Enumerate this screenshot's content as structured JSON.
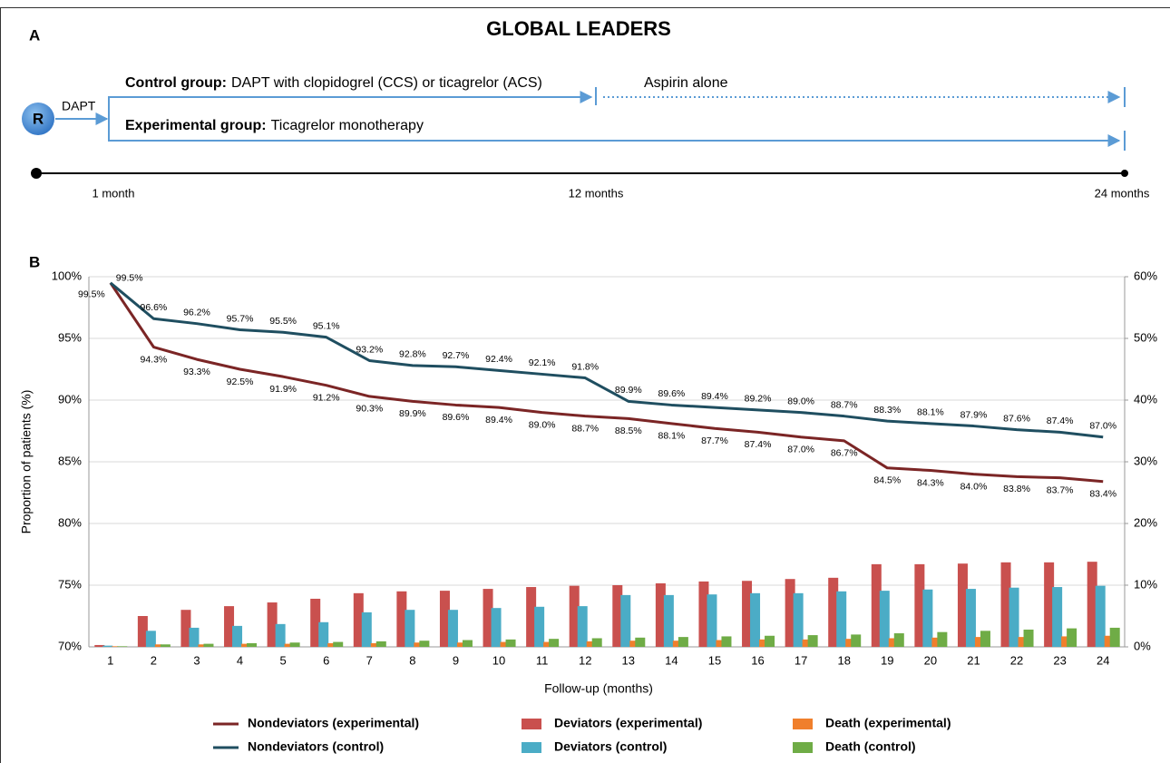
{
  "title": "GLOBAL LEADERS",
  "panel_a": {
    "label": "A",
    "randomization": "R",
    "dapt": "DAPT",
    "control_group": "Control group:",
    "control_regimen": "DAPT with clopidogrel (CCS) or ticagrelor (ACS)",
    "aspirin": "Aspirin alone",
    "experimental_group": "Experimental group:",
    "experimental_regimen": "Ticagrelor monotherapy",
    "timeline": [
      "1 month",
      "12 months",
      "24 months"
    ]
  },
  "panel_b_label": "B",
  "chart_data": {
    "type": "combo",
    "y_label": "Proportion of patients (%)",
    "x_label": "Follow-up (months)",
    "categories": [
      1,
      2,
      3,
      4,
      5,
      6,
      7,
      8,
      9,
      10,
      11,
      12,
      13,
      14,
      15,
      16,
      17,
      18,
      19,
      20,
      21,
      22,
      23,
      24
    ],
    "ylim": [
      70,
      100
    ],
    "yticks": [
      {
        "value": 70,
        "label": "70%"
      },
      {
        "value": 75,
        "label": "75%"
      },
      {
        "value": 80,
        "label": "80%"
      },
      {
        "value": 85,
        "label": "85%"
      },
      {
        "value": 90,
        "label": "90%"
      },
      {
        "value": 95,
        "label": "95%"
      },
      {
        "value": 100,
        "label": "100%"
      }
    ],
    "y2lim": [
      0,
      60
    ],
    "y2ticks": [
      {
        "value": 0,
        "label": "0%"
      },
      {
        "value": 10,
        "label": "10%"
      },
      {
        "value": 20,
        "label": "20%"
      },
      {
        "value": 30,
        "label": "30%"
      },
      {
        "value": 40,
        "label": "40%"
      },
      {
        "value": 50,
        "label": "50%"
      },
      {
        "value": 60,
        "label": "60%"
      }
    ],
    "grid": true,
    "series": [
      {
        "name": "Nondeviators (experimental)",
        "type": "line",
        "color": "#7b2525",
        "values": [
          99.5,
          94.3,
          93.3,
          92.5,
          91.9,
          91.2,
          90.3,
          89.9,
          89.6,
          89.4,
          89.0,
          88.7,
          88.5,
          88.1,
          87.7,
          87.4,
          87.0,
          86.7,
          84.5,
          84.3,
          84.0,
          83.8,
          83.7,
          83.4
        ],
        "value_labels": [
          "99.5%",
          "94.3%",
          "93.3%",
          "92.5%",
          "91.9%",
          "91.2%",
          "90.3%",
          "89.9%",
          "89.6%",
          "89.4%",
          "89.0%",
          "88.7%",
          "88.5%",
          "88.1%",
          "87.7%",
          "87.4%",
          "87.0%",
          "86.7%",
          "84.5%",
          "84.3%",
          "84.0%",
          "83.8%",
          "83.7%",
          "83.4%"
        ]
      },
      {
        "name": "Nondeviators (control)",
        "type": "line",
        "color": "#1f4e60",
        "values": [
          99.5,
          96.6,
          96.2,
          95.7,
          95.5,
          95.1,
          93.2,
          92.8,
          92.7,
          92.4,
          92.1,
          91.8,
          89.9,
          89.6,
          89.4,
          89.2,
          89.0,
          88.7,
          88.3,
          88.1,
          87.9,
          87.6,
          87.4,
          87.0
        ],
        "value_labels": [
          "99.5%",
          "96.6%",
          "96.2%",
          "95.7%",
          "95.5%",
          "95.1%",
          "93.2%",
          "92.8%",
          "92.7%",
          "92.4%",
          "92.1%",
          "91.8%",
          "89.9%",
          "89.6%",
          "89.4%",
          "89.2%",
          "89.0%",
          "88.7%",
          "88.3%",
          "88.1%",
          "87.9%",
          "87.6%",
          "87.4%",
          "87.0%"
        ]
      },
      {
        "name": "Deviators (experimental)",
        "type": "bar",
        "axis": "y2",
        "color": "#c9504e",
        "values": [
          0.3,
          5.0,
          6.0,
          6.6,
          7.2,
          7.8,
          8.7,
          9.0,
          9.1,
          9.4,
          9.7,
          9.9,
          10.0,
          10.3,
          10.6,
          10.7,
          11.0,
          11.2,
          13.4,
          13.4,
          13.5,
          13.7,
          13.7,
          13.8
        ]
      },
      {
        "name": "Deviators (control)",
        "type": "bar",
        "axis": "y2",
        "color": "#4bacc6",
        "values": [
          0.2,
          2.6,
          3.1,
          3.4,
          3.7,
          4.0,
          5.6,
          6.0,
          6.0,
          6.3,
          6.5,
          6.6,
          8.4,
          8.4,
          8.5,
          8.7,
          8.7,
          9.0,
          9.1,
          9.3,
          9.4,
          9.6,
          9.7,
          9.9
        ]
      },
      {
        "name": "Death (experimental)",
        "type": "bar",
        "axis": "y2",
        "color": "#f07f2c",
        "values": [
          0.1,
          0.4,
          0.4,
          0.5,
          0.5,
          0.6,
          0.6,
          0.7,
          0.7,
          0.8,
          0.8,
          0.9,
          1.0,
          1.0,
          1.1,
          1.2,
          1.2,
          1.3,
          1.4,
          1.5,
          1.6,
          1.6,
          1.7,
          1.8
        ]
      },
      {
        "name": "Death (control)",
        "type": "bar",
        "axis": "y2",
        "color": "#6fac46",
        "values": [
          0.1,
          0.4,
          0.5,
          0.6,
          0.7,
          0.8,
          0.9,
          1.0,
          1.1,
          1.2,
          1.3,
          1.4,
          1.5,
          1.6,
          1.7,
          1.8,
          1.9,
          2.0,
          2.2,
          2.4,
          2.6,
          2.8,
          3.0,
          3.1
        ]
      }
    ]
  }
}
